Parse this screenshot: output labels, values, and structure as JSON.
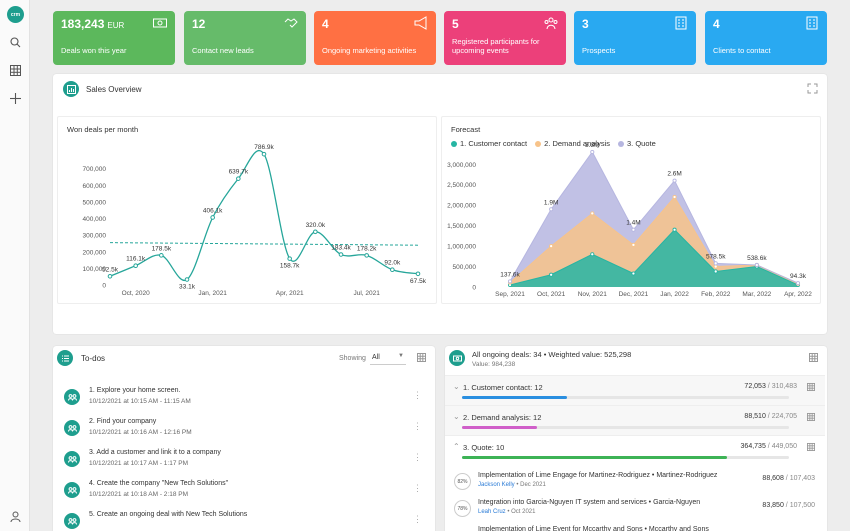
{
  "nav": {
    "logo": "crm",
    "icons": [
      "search-icon",
      "grid-icon",
      "plus-icon",
      "user-icon"
    ]
  },
  "kpis": [
    {
      "value": "183,243",
      "unit": "EUR",
      "label": "Deals won this year",
      "color": "#5cb85c",
      "icon": "money-icon"
    },
    {
      "value": "12",
      "unit": "",
      "label": "Contact new leads",
      "color": "#66bb6a",
      "icon": "handshake-icon"
    },
    {
      "value": "4",
      "unit": "",
      "label": "Ongoing marketing activities",
      "color": "#ff7043",
      "icon": "megaphone-icon"
    },
    {
      "value": "5",
      "unit": "",
      "label": "Registered participants for upcoming events",
      "color": "#ec407a",
      "icon": "people-icon"
    },
    {
      "value": "3",
      "unit": "",
      "label": "Prospects",
      "color": "#29a9f1",
      "icon": "building-icon"
    },
    {
      "value": "4",
      "unit": "",
      "label": "Clients to contact",
      "color": "#29a9f1",
      "icon": "building-icon"
    }
  ],
  "sales_overview": {
    "title": "Sales Overview"
  },
  "chart_data": [
    {
      "type": "line",
      "title": "Won deals per month",
      "x": [
        "Sep, 2020",
        "Oct, 2020",
        "Nov, 2020",
        "Dec, 2020",
        "Jan, 2021",
        "Feb, 2021",
        "Mar, 2021",
        "Apr, 2021",
        "May, 2021",
        "Jun, 2021",
        "Jul, 2021",
        "Aug, 2021",
        "Sep, 2021"
      ],
      "xticks": [
        "Oct, 2020",
        "Jan, 2021",
        "Apr, 2021",
        "Jul, 2021"
      ],
      "series": [
        {
          "values": [
            52500,
            116100,
            178500,
            33100,
            406100,
            639700,
            786900,
            158700,
            320000,
            183400,
            178200,
            92000,
            67500
          ]
        }
      ],
      "data_labels": [
        "52.5k",
        "116.1k",
        "178.5k",
        "33.1k",
        "406.1k",
        "639.7k",
        "786.9k",
        "158.7k",
        "320.0k",
        "183.4k",
        "178.2k",
        "92.0k",
        "67.5k"
      ],
      "trend_line": true,
      "yticks": [
        0,
        100000,
        200000,
        300000,
        400000,
        500000,
        600000,
        700000
      ],
      "ytick_labels": [
        "0",
        "100,000",
        "200,000",
        "300,000",
        "400,000",
        "500,000",
        "600,000",
        "700,000"
      ],
      "ylim": [
        0,
        800000
      ],
      "color": "#26a69a",
      "grid": false
    },
    {
      "type": "area",
      "title": "Forecast",
      "x": [
        "Sep, 2021",
        "Oct, 2021",
        "Nov, 2021",
        "Dec, 2021",
        "Jan, 2022",
        "Feb, 2022",
        "Mar, 2022",
        "Apr, 2022"
      ],
      "series": [
        {
          "name": "1. Customer contact",
          "color": "#26b5a3",
          "values": [
            50000,
            300000,
            800000,
            330000,
            1400000,
            380000,
            500000,
            50000
          ]
        },
        {
          "name": "2. Demand analysis",
          "color": "#f7c38a",
          "values": [
            60000,
            700000,
            1000000,
            700000,
            800000,
            120000,
            38600,
            30000
          ]
        },
        {
          "name": "3. Quote",
          "color": "#b6b6e0",
          "values": [
            27600,
            900000,
            1500000,
            370000,
            400000,
            78500,
            0,
            14300
          ]
        }
      ],
      "total_labels": [
        "137.6k",
        "1.9M",
        "3.3M",
        "1.4M",
        "2.6M",
        "578.5k",
        "538.6k",
        "94.3k"
      ],
      "yticks": [
        0,
        500000,
        1000000,
        1500000,
        2000000,
        2500000,
        3000000
      ],
      "ytick_labels": [
        "0",
        "500,000",
        "1,000,000",
        "1,500,000",
        "2,000,000",
        "2,500,000",
        "3,000,000"
      ],
      "ylim": [
        0,
        3300000
      ],
      "legend": "top-left",
      "grid": false
    }
  ],
  "todos": {
    "title": "To-dos",
    "showing_label": "Showing",
    "filter_value": "All",
    "items": [
      {
        "title": "1. Explore your home screen.",
        "date": "10/12/2021 at 10:15 AM - 11:15 AM"
      },
      {
        "title": "2. Find your company",
        "date": "10/12/2021 at 10:16 AM - 12:16 PM"
      },
      {
        "title": "3. Add a customer and link it to a company",
        "date": "10/12/2021 at 10:17 AM - 1:17 PM"
      },
      {
        "title": "4. Create the company \"New Tech Solutions\"",
        "date": "10/12/2021 at 10:18 AM - 2:18 PM"
      },
      {
        "title": "5. Create an ongoing deal with New Tech Solutions",
        "date": ""
      }
    ]
  },
  "deals": {
    "title": "All ongoing deals: 34 • Weighted value: 525,298",
    "subtitle": "Value: 984,238",
    "stages": [
      {
        "name": "1. Customer contact: 12",
        "weighted": "72,053",
        "total": "310,483",
        "progress": 0.32,
        "color": "#2a8fe0",
        "expanded": false
      },
      {
        "name": "2. Demand analysis: 12",
        "weighted": "88,510",
        "total": "224,705",
        "progress": 0.23,
        "color": "#d05fc9",
        "expanded": false
      },
      {
        "name": "3. Quote: 10",
        "weighted": "364,735",
        "total": "449,050",
        "progress": 0.81,
        "color": "#3db356",
        "expanded": true
      }
    ],
    "items": [
      {
        "pct": "82%",
        "name": "Implementation of Lime Engage for Martinez-Rodriguez • Martinez-Rodriguez",
        "person": "Jackson Kelly",
        "date": "Dec 2021",
        "weighted": "88,608",
        "total": "107,403"
      },
      {
        "pct": "78%",
        "name": "Integration into Garcia-Nguyen IT system and services • Garcia-Nguyen",
        "person": "Leah Cruz",
        "date": "Oct 2021",
        "weighted": "83,850",
        "total": "107,500"
      },
      {
        "pct": "",
        "name": "Implementation of Lime Event for Mccarthy and Sons • Mccarthy and Sons",
        "person": "",
        "date": "",
        "weighted": "",
        "total": ""
      }
    ]
  }
}
